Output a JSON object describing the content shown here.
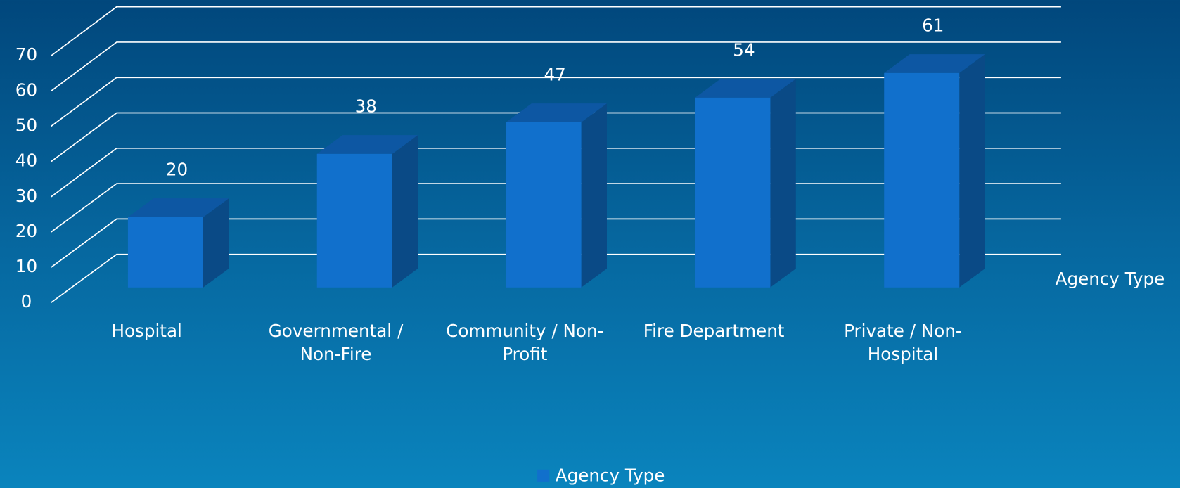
{
  "chart_data": {
    "type": "bar3d",
    "categories": [
      "Hospital",
      "Governmental / Non-Fire",
      "Community / Non-Profit",
      "Fire Department",
      "Private / Non-Hospital"
    ],
    "series": [
      {
        "name": "Agency Type",
        "color": "#1170cc",
        "values": [
          20,
          38,
          47,
          54,
          61
        ]
      }
    ],
    "depth_label": "Agency Type",
    "ylim": [
      0,
      70
    ],
    "yticks": [
      0,
      10,
      20,
      30,
      40,
      50,
      60,
      70
    ],
    "grid": true,
    "legend": "bottom"
  }
}
